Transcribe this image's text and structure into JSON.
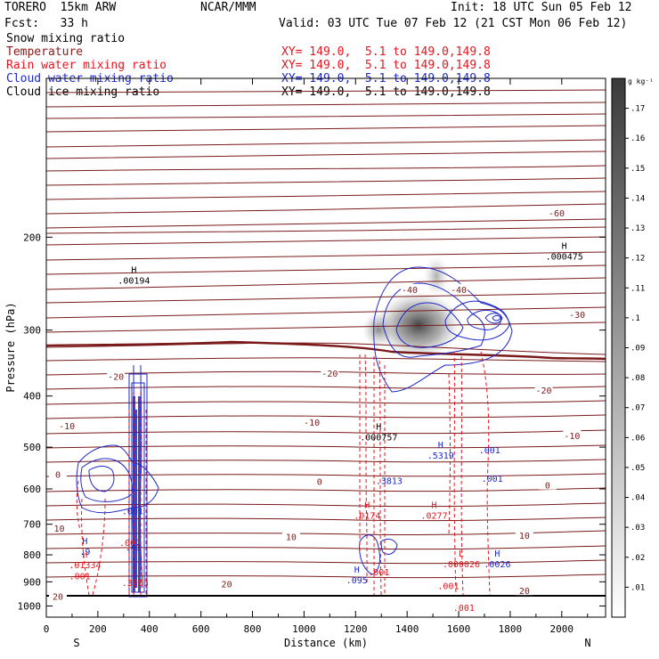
{
  "header": {
    "model": "TORERO  15km ARW",
    "org": "NCAR/MMM",
    "init": "Init: 18 UTC Sun 05 Feb 12",
    "fcst": "Fcst:   33 h",
    "valid": "Valid: 03 UTC Tue 07 Feb 12 (21 CST Mon 06 Feb 12)"
  },
  "fields": [
    {
      "name": "Snow mixing ratio",
      "color": "#000000",
      "xy": ""
    },
    {
      "name": "Temperature",
      "color": "#8b1a1a",
      "xy": "XY= 149.0,  5.1 to 149.0,149.8"
    },
    {
      "name": "Rain water mixing ratio",
      "color": "#e8141e",
      "xy": "XY= 149.0,  5.1 to 149.0,149.8"
    },
    {
      "name": "Cloud water mixing ratio",
      "color": "#1e28c8",
      "xy": "XY= 149.0,  5.1 to 149.0,149.8"
    },
    {
      "name": "Cloud ice mixing ratio",
      "color": "#000000",
      "xy": "XY= 149.0,  5.1 to 149.0,149.8"
    }
  ],
  "chart_data": {
    "type": "cross-section contour",
    "xlabel": "Distance (km)",
    "ylabel": "Pressure (hPa)",
    "x_start_label": "S",
    "x_end_label": "N",
    "xlim": [
      0,
      2170
    ],
    "ylim": [
      1050,
      100
    ],
    "y_scale": "log",
    "x_ticks": [
      0,
      200,
      400,
      600,
      800,
      1000,
      1200,
      1400,
      1600,
      1800,
      2000
    ],
    "y_ticks": [
      200,
      300,
      400,
      500,
      600,
      700,
      800,
      900,
      1000
    ],
    "colorbar": {
      "unit": "g kg⁻¹",
      "ticks": [
        ".01",
        ".02",
        ".03",
        ".04",
        ".05",
        ".06",
        ".07",
        ".08",
        ".09",
        ".1",
        ".11",
        ".12",
        ".13",
        ".14",
        ".15",
        ".16",
        ".17"
      ]
    },
    "temperature_contours": [
      {
        "label": "-60",
        "x": 1980,
        "p": 180
      },
      {
        "label": "-40",
        "x": 1410,
        "p": 251
      },
      {
        "label": "-40",
        "x": 1600,
        "p": 251
      },
      {
        "label": "-30",
        "x": 2060,
        "p": 280
      },
      {
        "label": "-20",
        "x": 270,
        "p": 367
      },
      {
        "label": "-20",
        "x": 1100,
        "p": 362
      },
      {
        "label": "-20",
        "x": 1930,
        "p": 390
      },
      {
        "label": "-10",
        "x": 80,
        "p": 455
      },
      {
        "label": "-10",
        "x": 1030,
        "p": 448
      },
      {
        "label": "-10",
        "x": 2040,
        "p": 475
      },
      {
        "label": "0",
        "x": 45,
        "p": 563
      },
      {
        "label": "0",
        "x": 1060,
        "p": 580
      },
      {
        "label": "0",
        "x": 1945,
        "p": 590
      },
      {
        "label": "10",
        "x": 50,
        "p": 712
      },
      {
        "label": "10",
        "x": 950,
        "p": 738
      },
      {
        "label": "10",
        "x": 1855,
        "p": 735
      },
      {
        "label": "20",
        "x": 700,
        "p": 907
      },
      {
        "label": "20",
        "x": 1855,
        "p": 935
      },
      {
        "label": "20",
        "x": 45,
        "p": 958
      }
    ],
    "extrema": [
      {
        "type": "H",
        "value": ".00194",
        "x": 340,
        "p": 242,
        "color": "#000000"
      },
      {
        "type": "H",
        "value": ".000475",
        "x": 2010,
        "p": 218,
        "color": "#000000"
      },
      {
        "type": "H",
        "value": ".000757",
        "x": 1290,
        "p": 480,
        "color": "#000000"
      },
      {
        "type": "H",
        "value": ".5319",
        "x": 1530,
        "p": 520,
        "color": "#1e28c8"
      },
      {
        "type": "",
        "value": ".001",
        "x": 1720,
        "p": 508,
        "color": "#1e28c8"
      },
      {
        "type": "",
        "value": ".001",
        "x": 1730,
        "p": 575,
        "color": "#1e28c8"
      },
      {
        "type": "",
        "value": ".3813",
        "x": 1330,
        "p": 580,
        "color": "#1e28c8"
      },
      {
        "type": "",
        "value": ".001",
        "x": 335,
        "p": 663,
        "color": "#1e28c8"
      },
      {
        "type": "",
        "value": ".001",
        "x": 325,
        "p": 760,
        "color": "#e8141e"
      },
      {
        "type": "",
        "value": ".43",
        "x": 338,
        "p": 776,
        "color": "#1e28c8"
      },
      {
        "type": "H",
        "value": ".0174",
        "x": 1245,
        "p": 675,
        "color": "#e8141e"
      },
      {
        "type": "H",
        "value": ".0277",
        "x": 1505,
        "p": 675,
        "color": "#e8141e"
      },
      {
        "type": "L",
        "value": ".000026",
        "x": 1610,
        "p": 835,
        "color": "#e8141e"
      },
      {
        "type": "H",
        "value": ".0026",
        "x": 1750,
        "p": 835,
        "color": "#1e28c8"
      },
      {
        "type": "H",
        "value": ".9",
        "x": 150,
        "p": 790,
        "color": "#1e28c8"
      },
      {
        "type": "H",
        "value": ".01334",
        "x": 150,
        "p": 838,
        "color": "#e8141e"
      },
      {
        "type": "",
        "value": ".001",
        "x": 130,
        "p": 880,
        "color": "#e8141e"
      },
      {
        "type": "",
        "value": ".3903",
        "x": 345,
        "p": 905,
        "color": "#e8141e"
      },
      {
        "type": "",
        "value": ".001",
        "x": 1290,
        "p": 865,
        "color": "#e8141e"
      },
      {
        "type": "H",
        "value": ".095",
        "x": 1205,
        "p": 895,
        "color": "#1e28c8"
      },
      {
        "type": "",
        "value": ".001",
        "x": 1560,
        "p": 918,
        "color": "#e8141e"
      },
      {
        "type": "",
        "value": ".001",
        "x": 1620,
        "p": 1010,
        "color": "#e8141e"
      }
    ]
  }
}
